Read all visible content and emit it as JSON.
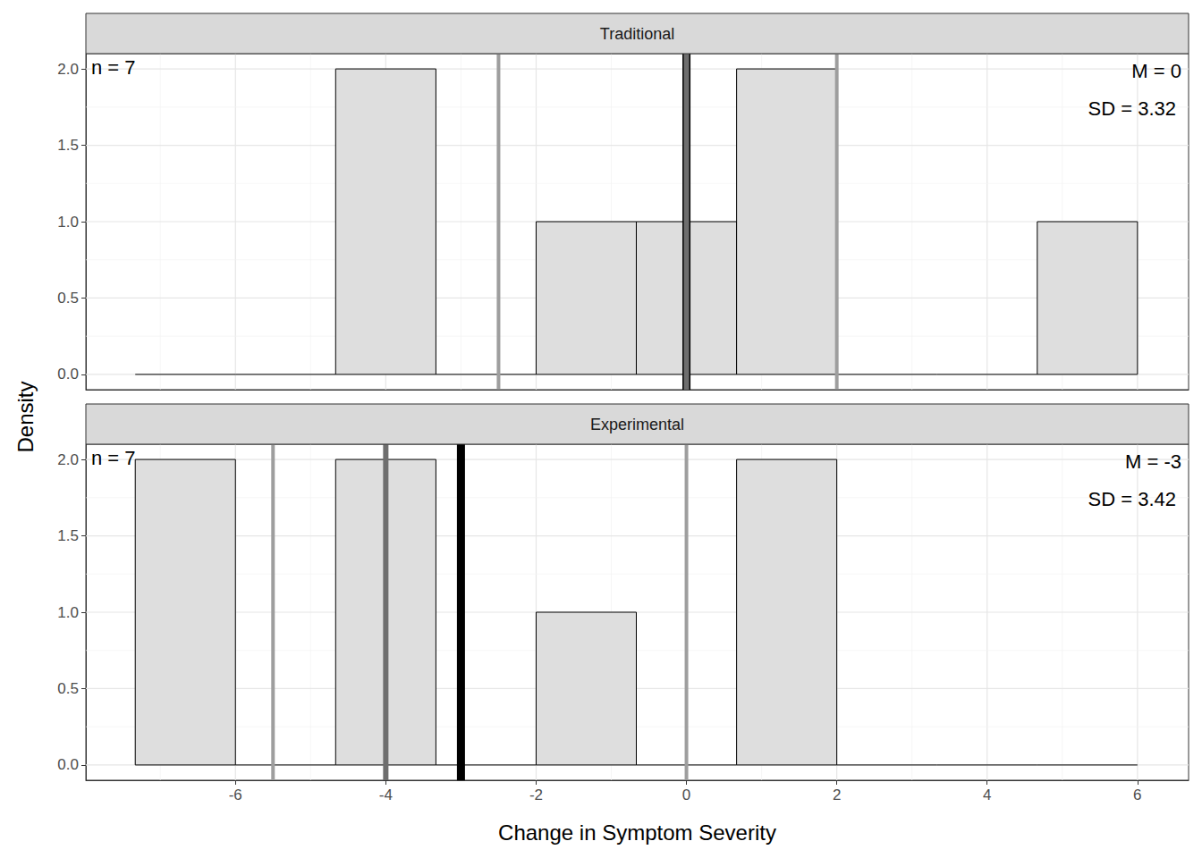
{
  "chart_data": [
    {
      "type": "histogram",
      "title": "Traditional",
      "bins": [
        -7.333,
        -6,
        -4.667,
        -3.333,
        -2,
        -0.667,
        0.667,
        2,
        3.333,
        4.667,
        6
      ],
      "counts": [
        0,
        0,
        2,
        0,
        1,
        1,
        2,
        0,
        0,
        1
      ],
      "color": "#dedede",
      "annotations": {
        "n": "n = 7",
        "mean": "M = 0",
        "sd": "SD = 3.32"
      },
      "mean": 0,
      "median": 0,
      "quartiles": [
        -2.5,
        2
      ],
      "xlim": [
        -7.99,
        6.68
      ],
      "xticks": [
        -6,
        -4,
        -2,
        0,
        2,
        4,
        6
      ],
      "ylim": [
        -0.1,
        2.1
      ],
      "yticks": [
        {
          "value": 0,
          "label": "0.0"
        },
        {
          "value": 0.5,
          "label": "0.5"
        },
        {
          "value": 1,
          "label": "1.0"
        },
        {
          "value": 1.5,
          "label": "1.5"
        },
        {
          "value": 2,
          "label": "2.0"
        }
      ],
      "grid": true,
      "tick_labels": "y",
      "y_label": "Density"
    },
    {
      "type": "histogram",
      "title": "Experimental",
      "bins": [
        -7.333,
        -6,
        -4.667,
        -3.333,
        -2,
        -0.667,
        0.667,
        2,
        3.333,
        4.667,
        6
      ],
      "counts": [
        2,
        0,
        2,
        0,
        1,
        0,
        2,
        0,
        0,
        0
      ],
      "color": "#dedede",
      "annotations": {
        "n": "n = 7",
        "mean": "M = -3",
        "sd": "SD = 3.42"
      },
      "mean": -3,
      "median": -4,
      "quartiles": [
        -5.5,
        0
      ],
      "xlim": [
        -7.99,
        6.68
      ],
      "xticks": [
        -6,
        -4,
        -2,
        0,
        2,
        4,
        6
      ],
      "ylim": [
        -0.1,
        2.1
      ],
      "yticks": [
        {
          "value": 0,
          "label": "0.0"
        },
        {
          "value": 0.5,
          "label": "0.5"
        },
        {
          "value": 1,
          "label": "1.0"
        },
        {
          "value": 1.5,
          "label": "1.5"
        },
        {
          "value": 2,
          "label": "2.0"
        }
      ],
      "grid": true,
      "x_label": "Change in Symptom Severity"
    }
  ]
}
